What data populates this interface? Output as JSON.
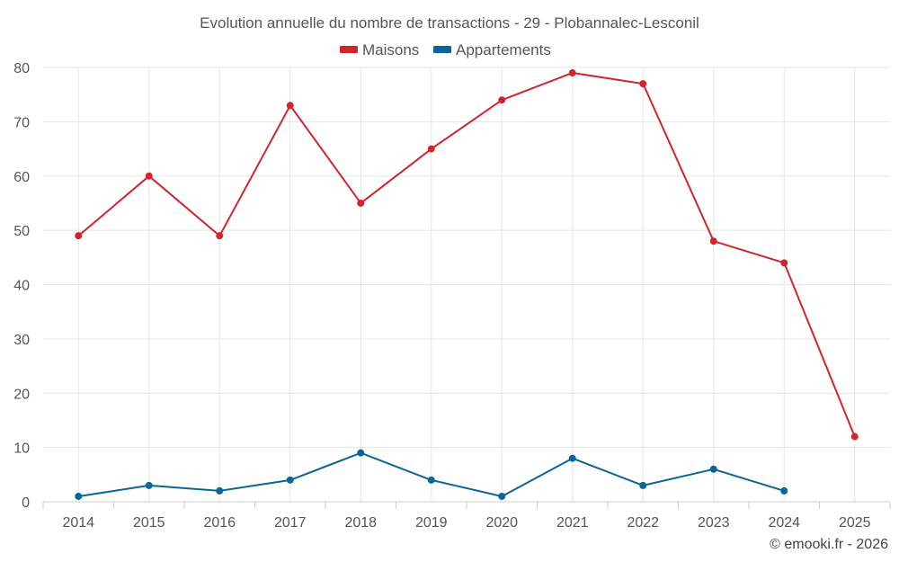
{
  "chart_data": {
    "type": "line",
    "title": "Evolution annuelle du nombre de transactions - 29 - Plobannalec-Lesconil",
    "categories": [
      "2014",
      "2015",
      "2016",
      "2017",
      "2018",
      "2019",
      "2020",
      "2021",
      "2022",
      "2023",
      "2024",
      "2025"
    ],
    "ylim": [
      0,
      80
    ],
    "yticks": [
      "0",
      "10",
      "20",
      "30",
      "40",
      "50",
      "60",
      "70",
      "80"
    ],
    "grid": true,
    "legend_position": "top-center",
    "series": [
      {
        "name": "Maisons",
        "color": "#d0262b",
        "values": [
          49,
          60,
          49,
          73,
          55,
          65,
          74,
          79,
          77,
          48,
          44,
          12
        ]
      },
      {
        "name": "Appartements",
        "color": "#0b6598",
        "values": [
          1,
          3,
          2,
          4,
          9,
          4,
          1,
          8,
          3,
          6,
          2,
          null
        ]
      }
    ]
  },
  "credit": "© emooki.fr - 2026"
}
